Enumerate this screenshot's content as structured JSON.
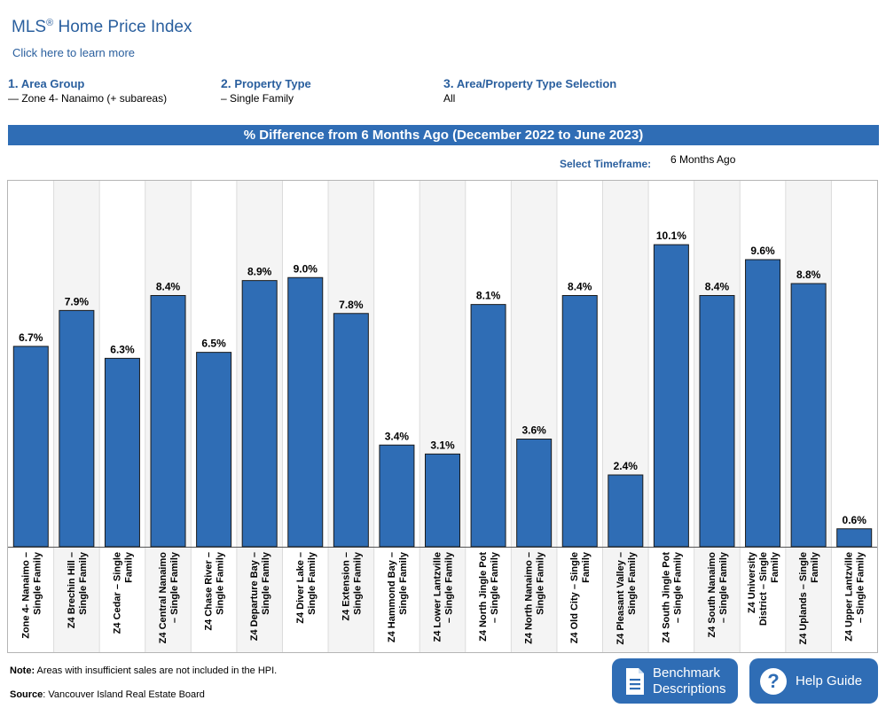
{
  "header": {
    "title": "MLS",
    "title_reg": "®",
    "title_rest": " Home Price Index",
    "learn_more": "Click here to learn more"
  },
  "selectors": {
    "area_group": {
      "num": "1.",
      "label": "Area Group",
      "value": "— Zone 4- Nanaimo (+ subareas)"
    },
    "property_type": {
      "num": "2.",
      "label": "Property Type",
      "value": "– Single Family"
    },
    "selection": {
      "num": "3.",
      "label": "Area/Property Type Selection",
      "value": "All"
    }
  },
  "banner": "% Difference from 6 Months Ago (December 2022 to June 2023)",
  "timeframe": {
    "label": "Select Timeframe:",
    "value": "6 Months Ago"
  },
  "chart_data": {
    "type": "bar",
    "title": "% Difference from 6 Months Ago (December 2022 to June 2023)",
    "categories": [
      [
        "Zone 4- Nanaimo –",
        "Single Family"
      ],
      [
        "Z4 Brechin Hill –",
        "Single Family"
      ],
      [
        "Z4 Cedar – Single",
        "Family"
      ],
      [
        "Z4 Central Nanaimo",
        "– Single Family"
      ],
      [
        "Z4 Chase River –",
        "Single Family"
      ],
      [
        "Z4 Departure Bay –",
        "Single Family"
      ],
      [
        "Z4 Diver Lake –",
        "Single Family"
      ],
      [
        "Z4 Extension –",
        "Single Family"
      ],
      [
        "Z4 Hammond Bay –",
        "Single Family"
      ],
      [
        "Z4 Lower Lantzville",
        "– Single Family"
      ],
      [
        "Z4 North Jingle Pot",
        "– Single Family"
      ],
      [
        "Z4 North Nanaimo –",
        "Single Family"
      ],
      [
        "Z4 Old City – Single",
        "Family"
      ],
      [
        "Z4 Pleasant Valley –",
        "Single Family"
      ],
      [
        "Z4 South Jingle Pot",
        "– Single Family"
      ],
      [
        "Z4 South Nanaimo",
        "– Single Family"
      ],
      [
        "Z4 University",
        "District – Single",
        "Family"
      ],
      [
        "Z4 Uplands – Single",
        "Family"
      ],
      [
        "Z4 Upper Lantzville",
        "– Single Family"
      ]
    ],
    "values": [
      6.7,
      7.9,
      6.3,
      8.4,
      6.5,
      8.9,
      9.0,
      7.8,
      3.4,
      3.1,
      8.1,
      3.6,
      8.4,
      2.4,
      10.1,
      8.4,
      9.6,
      8.8,
      0.6
    ],
    "value_labels": [
      "6.7%",
      "7.9%",
      "6.3%",
      "8.4%",
      "6.5%",
      "8.9%",
      "9.0%",
      "7.8%",
      "3.4%",
      "3.1%",
      "8.1%",
      "3.6%",
      "8.4%",
      "2.4%",
      "10.1%",
      "8.4%",
      "9.6%",
      "8.8%",
      "0.6%"
    ],
    "ylim": [
      0,
      11.2
    ],
    "bar_color": "#2f6db5",
    "grid": false,
    "xlabel": "",
    "ylabel": ""
  },
  "footer": {
    "note_label": "Note:",
    "note_text": " Areas with insufficient sales are not included in the HPI.",
    "source_label": "Source",
    "source_text": ": Vancouver Island Real Estate Board"
  },
  "buttons": {
    "benchmark": [
      "Benchmark",
      "Descriptions"
    ],
    "help": "Help Guide"
  },
  "colors": {
    "accent": "#2f6db5",
    "title_text": "#2a5f9e"
  }
}
